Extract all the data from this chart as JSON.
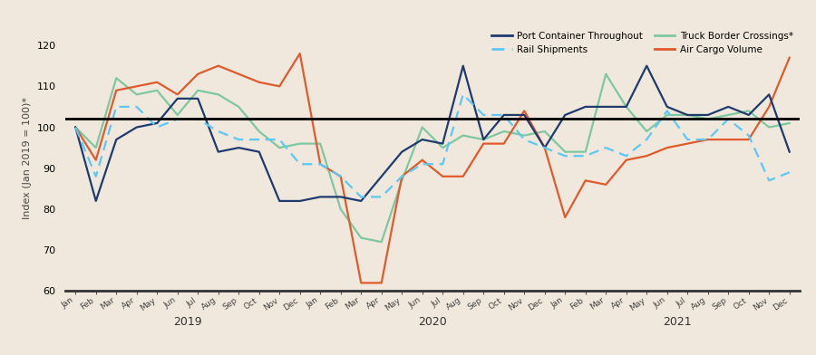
{
  "ylabel": "Index (Jan 2019 = 100)*",
  "background_color": "#f0e8dc",
  "ylim": [
    60,
    125
  ],
  "yticks": [
    60,
    70,
    80,
    90,
    100,
    110,
    120
  ],
  "reference_line": 102,
  "months": [
    "Jan",
    "Feb",
    "Mar",
    "Apr",
    "May",
    "Jun",
    "Jul",
    "Aug",
    "Sep",
    "Oct",
    "Nov",
    "Dec",
    "Jan",
    "Feb",
    "Mar",
    "Apr",
    "May",
    "Jun",
    "Jul",
    "Aug",
    "Sep",
    "Oct",
    "Nov",
    "Dec",
    "Jan",
    "Feb",
    "Mar",
    "Apr",
    "May",
    "Jun",
    "Jul",
    "Aug",
    "Sep",
    "Oct",
    "Nov",
    "Dec"
  ],
  "year_labels": [
    {
      "label": "2019",
      "idx": 5.5
    },
    {
      "label": "2020",
      "idx": 17.5
    },
    {
      "label": "2021",
      "idx": 29.5
    }
  ],
  "port_container": [
    100,
    82,
    97,
    100,
    101,
    107,
    107,
    94,
    95,
    94,
    82,
    82,
    83,
    83,
    82,
    88,
    94,
    97,
    96,
    115,
    97,
    103,
    103,
    95,
    103,
    105,
    105,
    105,
    115,
    105,
    103,
    103,
    105,
    103,
    108,
    94
  ],
  "rail_shipments": [
    100,
    88,
    105,
    105,
    100,
    102,
    102,
    99,
    97,
    97,
    97,
    91,
    91,
    88,
    83,
    83,
    88,
    91,
    91,
    108,
    103,
    103,
    97,
    95,
    93,
    93,
    95,
    93,
    97,
    104,
    97,
    97,
    102,
    98,
    87,
    89
  ],
  "truck_border": [
    100,
    95,
    112,
    108,
    109,
    103,
    109,
    108,
    105,
    99,
    95,
    96,
    96,
    80,
    73,
    72,
    87,
    100,
    95,
    98,
    97,
    99,
    98,
    99,
    94,
    94,
    113,
    105,
    99,
    103,
    103,
    102,
    103,
    104,
    100,
    101
  ],
  "air_cargo": [
    100,
    92,
    109,
    110,
    111,
    108,
    113,
    115,
    113,
    111,
    110,
    118,
    91,
    88,
    62,
    62,
    88,
    92,
    88,
    88,
    96,
    96,
    104,
    95,
    78,
    87,
    86,
    92,
    93,
    95,
    96,
    97,
    97,
    97,
    105,
    117
  ],
  "port_color": "#1e3a6e",
  "rail_color": "#5bc8f5",
  "truck_color": "#7ec8a0",
  "air_color": "#e05a2b",
  "legend_entries": [
    "Port Container Throughout",
    "Rail Shipments",
    "Truck Border Crossings*",
    "Air Cargo Volume"
  ]
}
